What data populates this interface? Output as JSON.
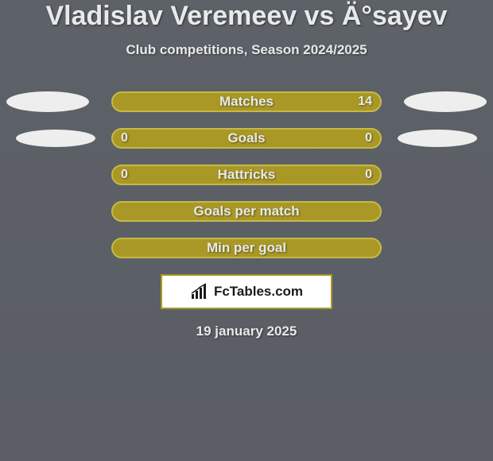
{
  "colors": {
    "background": "#5d6168",
    "background2": "#5a5e64",
    "text_primary": "#e8e9ea",
    "text_shadow": "#2c2e31",
    "pill_fill": "#a99826",
    "pill_border": "#c6b946",
    "ellipse_fill": "#eeeeee",
    "brand_bg": "#ffffff",
    "brand_border": "#a99826",
    "brand_text": "#1a1a1a"
  },
  "title": "Vladislav Veremeev vs Ä°sayev",
  "subtitle": "Club competitions, Season 2024/2025",
  "rows": [
    {
      "label": "Matches",
      "left": "",
      "right": "14",
      "left_ellipse": true,
      "right_ellipse": true
    },
    {
      "label": "Goals",
      "left": "0",
      "right": "0",
      "left_ellipse": true,
      "right_ellipse": true
    },
    {
      "label": "Hattricks",
      "left": "0",
      "right": "0",
      "left_ellipse": false,
      "right_ellipse": false
    },
    {
      "label": "Goals per match",
      "left": "",
      "right": "",
      "left_ellipse": false,
      "right_ellipse": false
    },
    {
      "label": "Min per goal",
      "left": "",
      "right": "",
      "left_ellipse": false,
      "right_ellipse": false
    }
  ],
  "brand": "FcTables.com",
  "date": "19 january 2025",
  "style": {
    "title_fontsize": 34,
    "subtitle_fontsize": 17,
    "label_fontsize": 17,
    "value_fontsize": 16,
    "pill_height": 26,
    "pill_radius": 13,
    "pill_border_width": 2,
    "ellipse_w": 104,
    "ellipse_h": 26,
    "row_gap": 20,
    "brand_w": 216,
    "brand_h": 44
  }
}
